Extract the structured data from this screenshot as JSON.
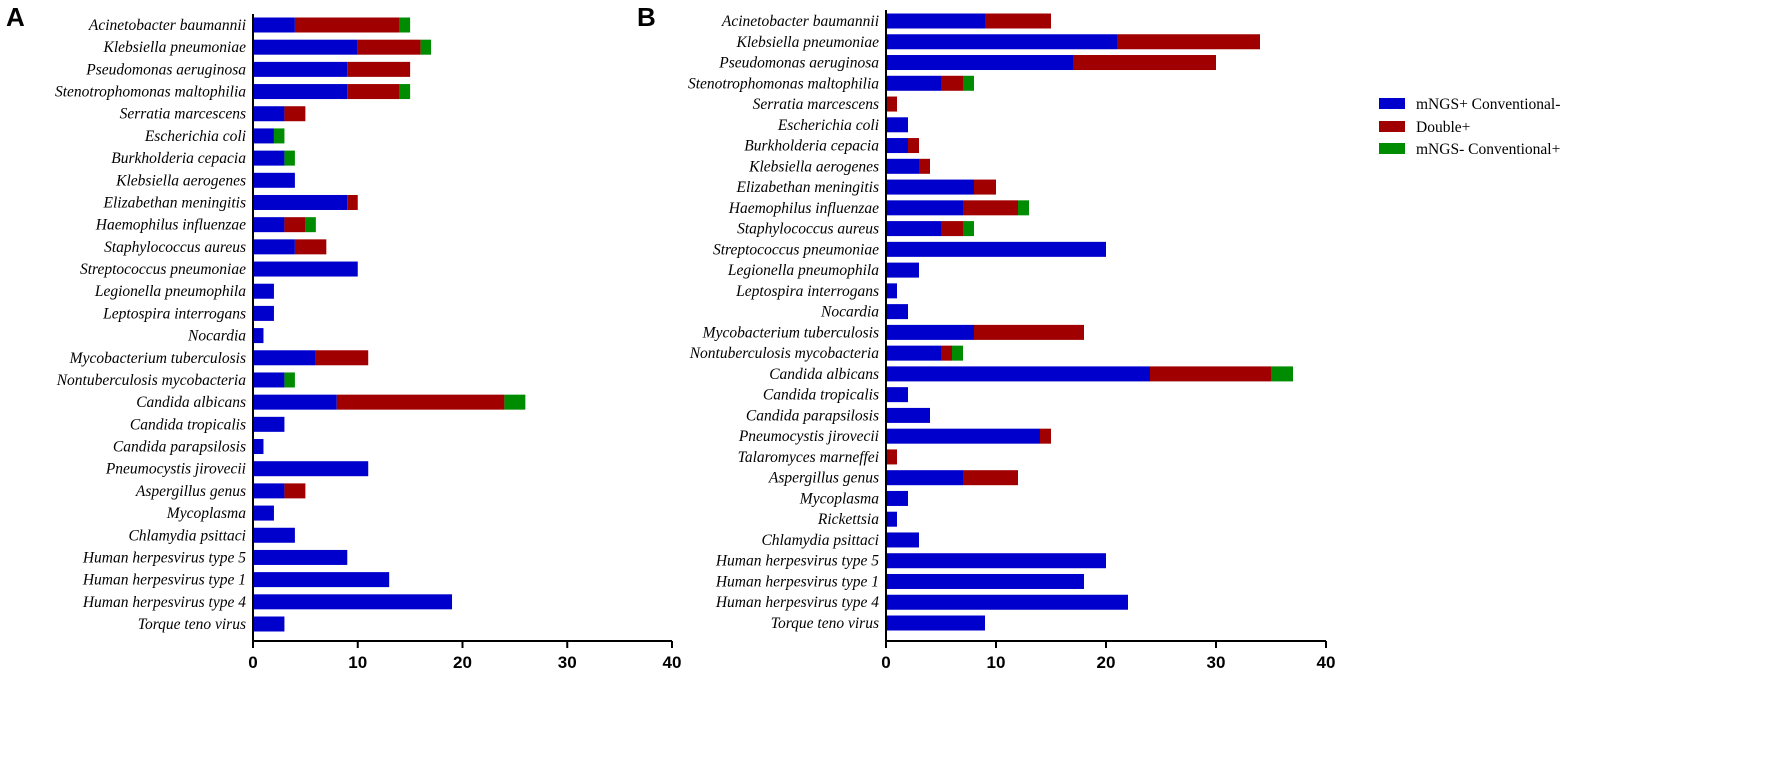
{
  "legend": [
    {
      "name": "mNGS+ Conventional-",
      "color": "#0000cc"
    },
    {
      "name": "Double+",
      "color": "#a00000"
    },
    {
      "name": "mNGS- Conventional+",
      "color": "#008c00"
    }
  ],
  "chart_data": [
    {
      "panel": "A",
      "type": "bar",
      "orientation": "horizontal",
      "stacked": true,
      "xlim": [
        0,
        40
      ],
      "xticks": [
        0,
        10,
        20,
        30,
        40
      ],
      "xlabel": "",
      "ylabel": "",
      "categories": [
        "Acinetobacter baumannii",
        "Klebsiella pneumoniae",
        "Pseudomonas aeruginosa",
        "Stenotrophomonas maltophilia",
        "Serratia marcescens",
        "Escherichia coli",
        "Burkholderia cepacia",
        "Klebsiella aerogenes",
        "Elizabethan meningitis",
        "Haemophilus influenzae",
        "Staphylococcus aureus",
        "Streptococcus pneumoniae",
        "Legionella pneumophila",
        "Leptospira interrogans",
        "Nocardia",
        "Mycobacterium tuberculosis",
        "Nontuberculosis mycobacteria",
        "Candida albicans",
        "Candida tropicalis",
        "Candida parapsilosis",
        "Pneumocystis jirovecii",
        "Aspergillus genus",
        "Mycoplasma",
        "Chlamydia psittaci",
        "Human herpesvirus type 5",
        "Human herpesvirus type 1",
        "Human herpesvirus type 4",
        "Torque teno virus"
      ],
      "series": [
        {
          "name": "mNGS+ Conventional-",
          "values": [
            4,
            10,
            9,
            9,
            3,
            2,
            3,
            4,
            9,
            3,
            4,
            10,
            2,
            2,
            1,
            6,
            3,
            8,
            3,
            1,
            11,
            3,
            2,
            4,
            9,
            13,
            19,
            3
          ]
        },
        {
          "name": "Double+",
          "values": [
            10,
            6,
            6,
            5,
            2,
            0,
            0,
            0,
            1,
            2,
            3,
            0,
            0,
            0,
            0,
            5,
            0,
            16,
            0,
            0,
            0,
            2,
            0,
            0,
            0,
            0,
            0,
            0
          ]
        },
        {
          "name": "mNGS- Conventional+",
          "values": [
            1,
            1,
            0,
            1,
            0,
            1,
            1,
            0,
            0,
            1,
            0,
            0,
            0,
            0,
            0,
            0,
            1,
            2,
            0,
            0,
            0,
            0,
            0,
            0,
            0,
            0,
            0,
            0
          ]
        }
      ]
    },
    {
      "panel": "B",
      "type": "bar",
      "orientation": "horizontal",
      "stacked": true,
      "xlim": [
        0,
        40
      ],
      "xticks": [
        0,
        10,
        20,
        30,
        40
      ],
      "xlabel": "",
      "ylabel": "",
      "categories": [
        "Acinetobacter baumannii",
        "Klebsiella pneumoniae",
        "Pseudomonas aeruginosa",
        "Stenotrophomonas maltophilia",
        "Serratia marcescens",
        "Escherichia coli",
        "Burkholderia cepacia",
        "Klebsiella aerogenes",
        "Elizabethan meningitis",
        "Haemophilus influenzae",
        "Staphylococcus aureus",
        "Streptococcus pneumoniae",
        "Legionella pneumophila",
        "Leptospira interrogans",
        "Nocardia",
        "Mycobacterium tuberculosis",
        "Nontuberculosis mycobacteria",
        "Candida albicans",
        "Candida tropicalis",
        "Candida parapsilosis",
        "Pneumocystis jirovecii",
        "Talaromyces marneffei",
        "Aspergillus genus",
        "Mycoplasma",
        "Rickettsia",
        "Chlamydia psittaci",
        "Human herpesvirus type 5",
        "Human herpesvirus type 1",
        "Human herpesvirus type 4",
        "Torque teno virus"
      ],
      "series": [
        {
          "name": "mNGS+ Conventional-",
          "values": [
            9,
            21,
            17,
            5,
            0,
            2,
            2,
            3,
            8,
            7,
            5,
            20,
            3,
            1,
            2,
            8,
            5,
            24,
            2,
            4,
            14,
            0,
            7,
            2,
            1,
            3,
            20,
            18,
            22,
            9
          ]
        },
        {
          "name": "Double+",
          "values": [
            6,
            13,
            13,
            2,
            1,
            0,
            1,
            1,
            2,
            5,
            2,
            0,
            0,
            0,
            0,
            10,
            1,
            11,
            0,
            0,
            1,
            1,
            5,
            0,
            0,
            0,
            0,
            0,
            0,
            0
          ]
        },
        {
          "name": "mNGS- Conventional+",
          "values": [
            0,
            0,
            0,
            1,
            0,
            0,
            0,
            0,
            0,
            1,
            1,
            0,
            0,
            0,
            0,
            0,
            1,
            2,
            0,
            0,
            0,
            0,
            0,
            0,
            0,
            0,
            0,
            0,
            0,
            0
          ]
        }
      ]
    }
  ]
}
